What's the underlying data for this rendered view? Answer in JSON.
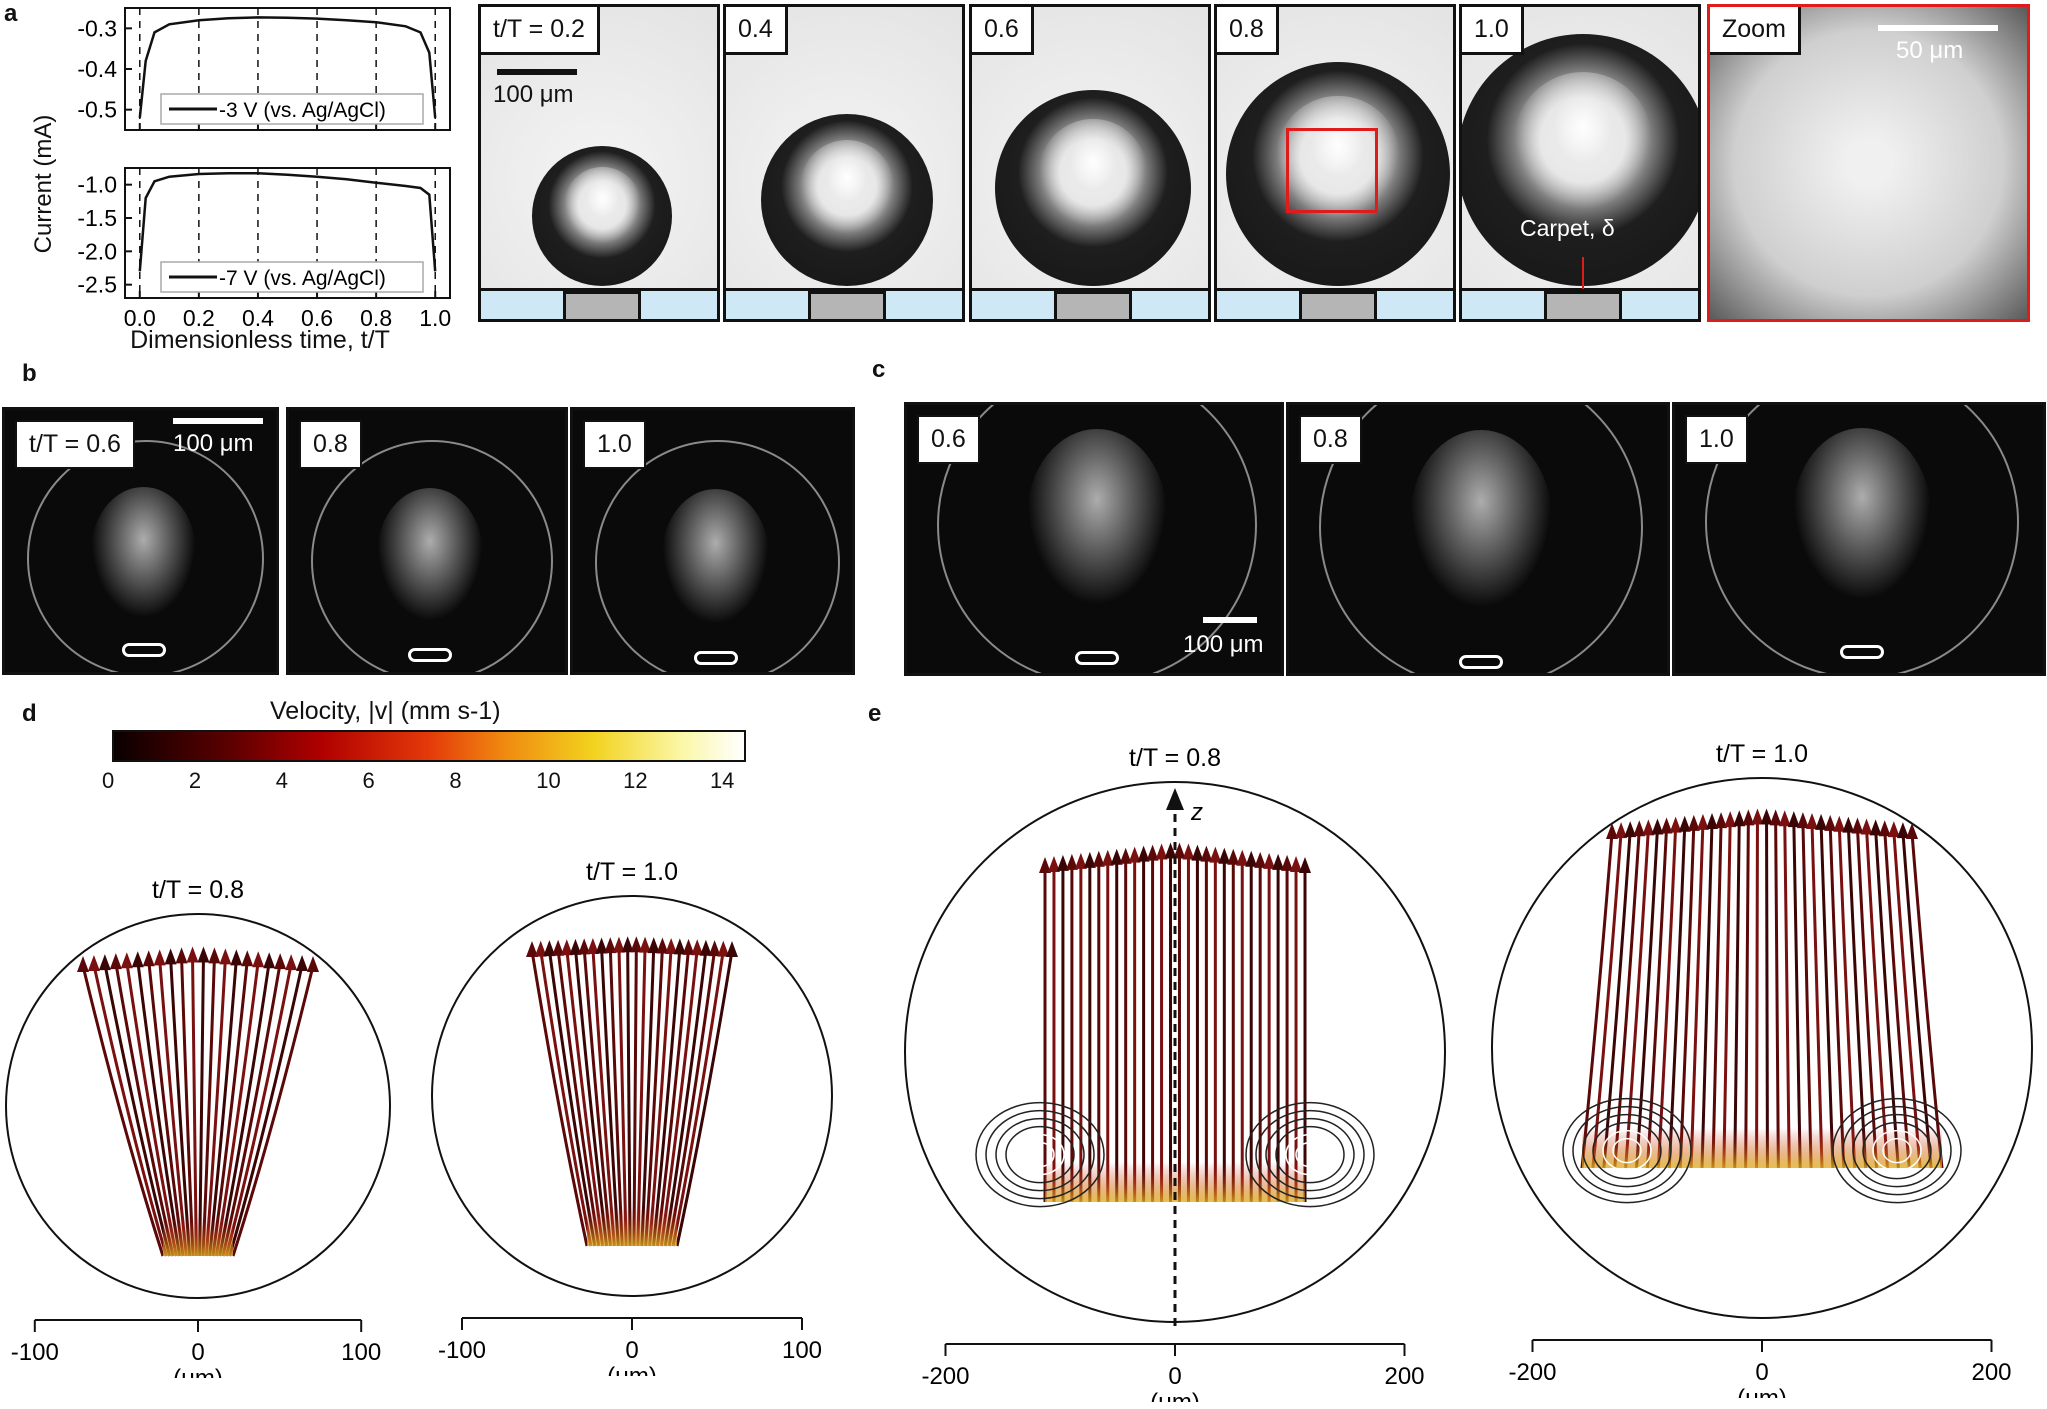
{
  "panel_letters": {
    "a": "a",
    "b": "b",
    "c": "c",
    "d": "d",
    "e": "e"
  },
  "a": {
    "chart_data": [
      {
        "type": "line",
        "legend": "-3 V (vs. Ag/AgCl)",
        "x": [
          0.0,
          0.02,
          0.05,
          0.1,
          0.2,
          0.3,
          0.4,
          0.5,
          0.6,
          0.7,
          0.8,
          0.9,
          0.95,
          0.98,
          1.0
        ],
        "y": [
          -0.52,
          -0.38,
          -0.31,
          -0.29,
          -0.28,
          -0.275,
          -0.273,
          -0.274,
          -0.276,
          -0.28,
          -0.285,
          -0.295,
          -0.31,
          -0.36,
          -0.52
        ],
        "ylim": [
          -0.55,
          -0.25
        ],
        "yticks": [
          "-0.3",
          "-0.4",
          "-0.5"
        ],
        "xlim": [
          -0.05,
          1.05
        ]
      },
      {
        "type": "line",
        "legend": "-7 V (vs. Ag/AgCl)",
        "x": [
          0.0,
          0.02,
          0.05,
          0.1,
          0.2,
          0.3,
          0.4,
          0.5,
          0.6,
          0.7,
          0.8,
          0.9,
          0.95,
          0.98,
          1.0
        ],
        "y": [
          -2.3,
          -1.2,
          -0.95,
          -0.88,
          -0.84,
          -0.83,
          -0.83,
          -0.85,
          -0.88,
          -0.92,
          -0.97,
          -1.02,
          -1.05,
          -1.15,
          -2.3
        ],
        "ylim": [
          -2.7,
          -0.75
        ],
        "yticks": [
          "-1.0",
          "-1.5",
          "-2.0",
          "-2.5"
        ],
        "xlim": [
          -0.05,
          1.05
        ]
      }
    ],
    "xticks": [
      "0.0",
      "0.2",
      "0.4",
      "0.6",
      "0.8",
      "1.0"
    ],
    "ylabel": "Current (mA)",
    "xlabel": "Dimensionless time, t/T",
    "frames": [
      {
        "label": "t/T = 0.2"
      },
      {
        "label": "0.4"
      },
      {
        "label": "0.6"
      },
      {
        "label": "0.8"
      },
      {
        "label": "1.0"
      },
      {
        "label": "Zoom"
      }
    ],
    "scalebar_100": "100 μm",
    "scalebar_50": "50 μm",
    "carpet": "Carpet, δ"
  },
  "b": {
    "frames": [
      {
        "label": "t/T = 0.6"
      },
      {
        "label": "0.8"
      },
      {
        "label": "1.0"
      }
    ],
    "scalebar": "100 μm"
  },
  "c": {
    "frames": [
      {
        "label": "0.6"
      },
      {
        "label": "0.8"
      },
      {
        "label": "1.0"
      }
    ],
    "scalebar": "100 μm"
  },
  "d": {
    "colorbar_title": "Velocity, |v| (mm s-1)",
    "colorbar_ticks": [
      "0",
      "2",
      "4",
      "6",
      "8",
      "10",
      "12",
      "14"
    ],
    "plots": [
      {
        "title": "t/T = 0.8"
      },
      {
        "title": "t/T = 1.0"
      }
    ],
    "xticks": [
      "-100",
      "0",
      "100"
    ],
    "unit": "(μm)"
  },
  "e": {
    "plots": [
      {
        "title": "t/T = 0.8"
      },
      {
        "title": "t/T = 1.0"
      }
    ],
    "axis_label": "z",
    "xticks": [
      "-200",
      "0",
      "200"
    ],
    "unit": "(μm)"
  },
  "colors": {
    "accent_red": "#e01b1b",
    "substrate": "#cfe8f6",
    "electrode": "#b5b5b5"
  }
}
